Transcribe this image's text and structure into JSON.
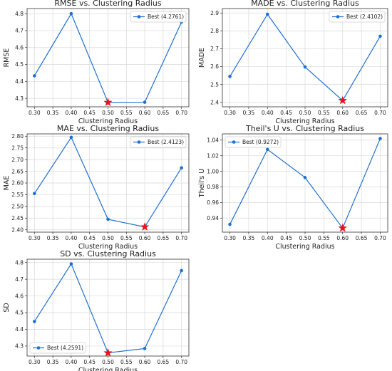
{
  "colors": {
    "line": "#1f6fd1",
    "marker": "#1f6fd1",
    "best_star": "#e8141b",
    "grid": "#d9d9d9",
    "axis": "#333333"
  },
  "chart_data": [
    {
      "type": "line",
      "title": "RMSE vs. Clustering Radius",
      "xlabel": "Clustering Radius",
      "ylabel": "RMSE",
      "x": [
        0.3,
        0.4,
        0.5,
        0.6,
        0.7
      ],
      "xticks": [
        "0.30",
        "0.35",
        "0.40",
        "0.45",
        "0.50",
        "0.55",
        "0.60",
        "0.65",
        "0.70"
      ],
      "series": [
        {
          "name": "Best (4.2761)",
          "values": [
            4.433,
            4.8,
            4.276,
            4.277,
            4.75
          ]
        }
      ],
      "best": {
        "x": 0.5,
        "y": 4.2761
      },
      "ylim": [
        4.25,
        4.83
      ],
      "yticks": [
        "4.3",
        "4.4",
        "4.5",
        "4.6",
        "4.7",
        "4.8"
      ],
      "legend": "top-right",
      "grid": true
    },
    {
      "type": "line",
      "title": "MADE vs. Clustering Radius",
      "xlabel": "Clustering Radius",
      "ylabel": "MADE",
      "x": [
        0.3,
        0.4,
        0.5,
        0.6,
        0.7
      ],
      "xticks": [
        "0.30",
        "0.35",
        "0.40",
        "0.45",
        "0.50",
        "0.55",
        "0.60",
        "0.65",
        "0.70"
      ],
      "series": [
        {
          "name": "Best (2.4102)",
          "values": [
            2.545,
            2.893,
            2.598,
            2.41,
            2.77
          ]
        }
      ],
      "best": {
        "x": 0.6,
        "y": 2.4102
      },
      "ylim": [
        2.375,
        2.925
      ],
      "yticks": [
        "2.4",
        "2.5",
        "2.6",
        "2.7",
        "2.8",
        "2.9"
      ],
      "legend": "top-right",
      "grid": true
    },
    {
      "type": "line",
      "title": "MAE vs. Clustering Radius",
      "xlabel": "Clustering Radius",
      "ylabel": "MAE",
      "x": [
        0.3,
        0.4,
        0.5,
        0.6,
        0.7
      ],
      "xticks": [
        "0.30",
        "0.35",
        "0.40",
        "0.45",
        "0.50",
        "0.55",
        "0.60",
        "0.65",
        "0.70"
      ],
      "series": [
        {
          "name": "Best (2.4123)",
          "values": [
            2.555,
            2.795,
            2.445,
            2.4123,
            2.665
          ]
        }
      ],
      "best": {
        "x": 0.6,
        "y": 2.4123
      },
      "ylim": [
        2.39,
        2.81
      ],
      "yticks": [
        "2.40",
        "2.45",
        "2.50",
        "2.55",
        "2.60",
        "2.65",
        "2.70",
        "2.75",
        "2.80"
      ],
      "legend": "top-right",
      "grid": true
    },
    {
      "type": "line",
      "title": "Theil's U vs. Clustering Radius",
      "xlabel": "Clustering Radius",
      "ylabel": "Theil's U",
      "x": [
        0.3,
        0.4,
        0.5,
        0.6,
        0.7
      ],
      "xticks": [
        "0.30",
        "0.35",
        "0.40",
        "0.45",
        "0.50",
        "0.55",
        "0.60",
        "0.65",
        "0.70"
      ],
      "series": [
        {
          "name": "Best (0.9272)",
          "values": [
            0.932,
            1.028,
            0.992,
            0.9272,
            1.042
          ]
        }
      ],
      "best": {
        "x": 0.6,
        "y": 0.9272
      },
      "ylim": [
        0.922,
        1.048
      ],
      "yticks": [
        "0.94",
        "0.96",
        "0.98",
        "1.00",
        "1.02",
        "1.04"
      ],
      "legend": "top-left",
      "grid": true
    },
    {
      "type": "line",
      "title": "SD vs. Clustering Radius",
      "xlabel": "Clustering Radius",
      "ylabel": "SD",
      "x": [
        0.3,
        0.4,
        0.5,
        0.6,
        0.7
      ],
      "xticks": [
        "0.30",
        "0.35",
        "0.40",
        "0.45",
        "0.50",
        "0.55",
        "0.60",
        "0.65",
        "0.70"
      ],
      "series": [
        {
          "name": "Best (4.2591)",
          "values": [
            4.447,
            4.792,
            4.2591,
            4.285,
            4.752
          ]
        }
      ],
      "best": {
        "x": 0.5,
        "y": 4.2591
      },
      "ylim": [
        4.24,
        4.82
      ],
      "yticks": [
        "4.3",
        "4.4",
        "4.5",
        "4.6",
        "4.7",
        "4.8"
      ],
      "legend": "bottom-left",
      "grid": true
    }
  ]
}
